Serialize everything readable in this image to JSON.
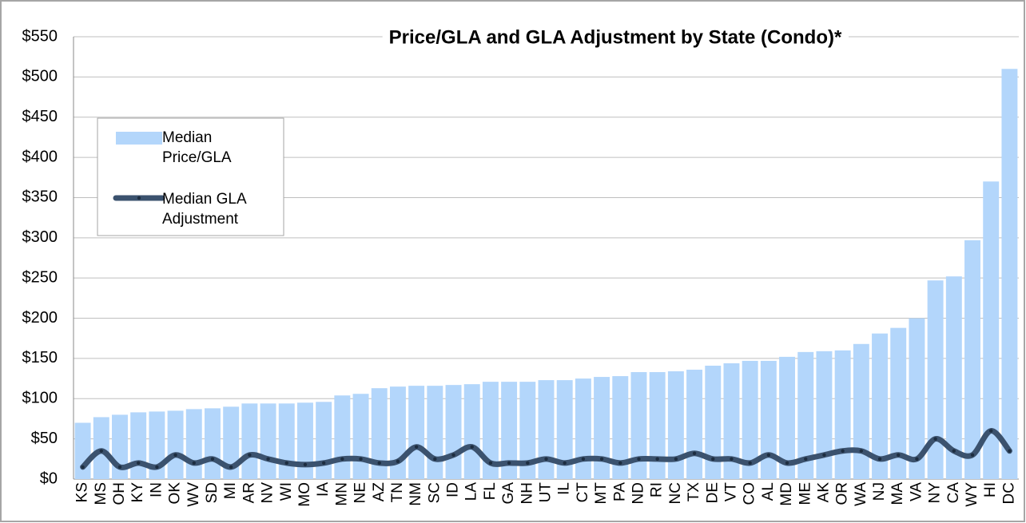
{
  "chart_data": {
    "type": "bar_line",
    "title": "Price/GLA and GLA Adjustment by State (Condo)*",
    "categories": [
      "KS",
      "MS",
      "OH",
      "KY",
      "IN",
      "OK",
      "WV",
      "SD",
      "MI",
      "AR",
      "NV",
      "WI",
      "MO",
      "IA",
      "MN",
      "NE",
      "AZ",
      "TN",
      "NM",
      "SC",
      "ID",
      "LA",
      "FL",
      "GA",
      "NH",
      "UT",
      "IL",
      "CT",
      "MT",
      "PA",
      "ND",
      "RI",
      "NC",
      "TX",
      "DE",
      "VT",
      "CO",
      "AL",
      "MD",
      "ME",
      "AK",
      "OR",
      "WA",
      "NJ",
      "MA",
      "VA",
      "NY",
      "CA",
      "WY",
      "HI",
      "DC"
    ],
    "series": [
      {
        "name": "Median Price/GLA",
        "type": "bar",
        "color": "#b3d6fb",
        "values": [
          70,
          77,
          80,
          83,
          84,
          85,
          87,
          88,
          90,
          94,
          94,
          94,
          95,
          96,
          104,
          106,
          113,
          115,
          116,
          116,
          117,
          118,
          121,
          121,
          121,
          123,
          123,
          125,
          127,
          128,
          133,
          133,
          134,
          136,
          141,
          144,
          147,
          147,
          152,
          158,
          159,
          160,
          168,
          181,
          188,
          200,
          247,
          252,
          297,
          370,
          510
        ]
      },
      {
        "name": "Median GLA Adjustment",
        "type": "line",
        "color": "#3b526e",
        "values": [
          15,
          35,
          15,
          20,
          15,
          30,
          20,
          25,
          15,
          30,
          25,
          20,
          18,
          20,
          25,
          25,
          20,
          22,
          40,
          25,
          30,
          40,
          20,
          20,
          20,
          25,
          20,
          25,
          25,
          20,
          25,
          25,
          25,
          32,
          25,
          25,
          20,
          30,
          20,
          25,
          30,
          35,
          35,
          25,
          30,
          25,
          50,
          35,
          30,
          60,
          35
        ]
      }
    ],
    "ylim": [
      0,
      550
    ],
    "yticks": [
      {
        "value": 0,
        "label": "$0"
      },
      {
        "value": 50,
        "label": "$50"
      },
      {
        "value": 100,
        "label": "$100"
      },
      {
        "value": 150,
        "label": "$150"
      },
      {
        "value": 200,
        "label": "$200"
      },
      {
        "value": 250,
        "label": "$250"
      },
      {
        "value": 300,
        "label": "$300"
      },
      {
        "value": 350,
        "label": "$350"
      },
      {
        "value": 400,
        "label": "$400"
      },
      {
        "value": 450,
        "label": "$450"
      },
      {
        "value": 500,
        "label": "$500"
      },
      {
        "value": 550,
        "label": "$550"
      }
    ],
    "grid": true,
    "legend": "upper left"
  }
}
